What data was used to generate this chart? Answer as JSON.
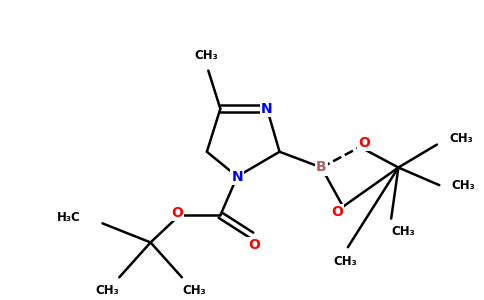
{
  "background_color": "#ffffff",
  "figsize": [
    4.84,
    3.0
  ],
  "dpi": 100,
  "bond_color": "#000000",
  "bond_lw": 1.8,
  "font_size": 8.5,
  "atom_colors": {
    "N": "#0000ff",
    "O": "#ff0000",
    "B": "#b06060",
    "C": "#000000"
  },
  "xlim": [
    0,
    10
  ],
  "ylim": [
    0,
    6.2
  ]
}
